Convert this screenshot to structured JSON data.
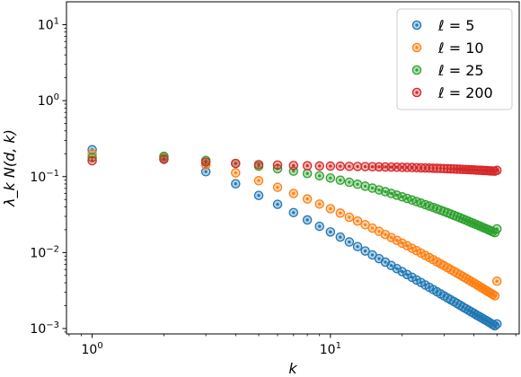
{
  "chart_data": {
    "type": "scatter",
    "xscale": "log",
    "yscale": "log",
    "xlabel": "k",
    "ylabel": "λ_k N(d, k)",
    "xlim": [
      0.78,
      62
    ],
    "ylim": [
      0.00085,
      20
    ],
    "x_ticks": [
      {
        "value": 1,
        "base": "10",
        "exp": "0"
      },
      {
        "value": 10,
        "base": "10",
        "exp": "1"
      }
    ],
    "y_ticks": [
      {
        "value": 0.001,
        "base": "10",
        "exp": "−3"
      },
      {
        "value": 0.01,
        "base": "10",
        "exp": "−2"
      },
      {
        "value": 0.1,
        "base": "10",
        "exp": "−1"
      },
      {
        "value": 1,
        "base": "10",
        "exp": "0"
      },
      {
        "value": 10,
        "base": "10",
        "exp": "1"
      }
    ],
    "legend_position": "top-right",
    "grid": false,
    "k_range": [
      1,
      50
    ],
    "series": [
      {
        "name": "ℓ = 5",
        "color": "#1f77b4",
        "values": [
          0.226,
          0.1725,
          0.116,
          0.0805,
          0.0565,
          0.0432,
          0.0336,
          0.0269,
          0.0222,
          0.0187,
          0.016,
          0.0138,
          0.012,
          0.0105,
          0.00933,
          0.00833,
          0.00749,
          0.00677,
          0.00615,
          0.00561,
          0.00514,
          0.00473,
          0.00436,
          0.00404,
          0.00375,
          0.00349,
          0.00326,
          0.00305,
          0.00286,
          0.00269,
          0.00253,
          0.00239,
          0.00226,
          0.00214,
          0.00203,
          0.00192,
          0.00183,
          0.00174,
          0.00166,
          0.00159,
          0.00151,
          0.00145,
          0.00139,
          0.00133,
          0.00128,
          0.00123,
          0.00118,
          0.00113,
          0.00109,
          0.00115
        ]
      },
      {
        "name": "ℓ = 10",
        "color": "#ff7f0e",
        "values": [
          0.2,
          0.182,
          0.143,
          0.112,
          0.0884,
          0.0723,
          0.06,
          0.0508,
          0.0435,
          0.0378,
          0.0331,
          0.0292,
          0.026,
          0.0233,
          0.021,
          0.019,
          0.0173,
          0.0158,
          0.0145,
          0.0133,
          0.0123,
          0.0114,
          0.0106,
          0.00985,
          0.00919,
          0.0086,
          0.00806,
          0.00757,
          0.00712,
          0.00671,
          0.00633,
          0.00598,
          0.00566,
          0.00537,
          0.00509,
          0.00483,
          0.0046,
          0.00438,
          0.00417,
          0.00398,
          0.0038,
          0.00363,
          0.00347,
          0.00332,
          0.00318,
          0.00305,
          0.00293,
          0.00281,
          0.0027,
          0.0042
        ]
      },
      {
        "name": "ℓ = 25",
        "color": "#2ca02c",
        "values": [
          0.178,
          0.185,
          0.163,
          0.149,
          0.137,
          0.127,
          0.118,
          0.11,
          0.1025,
          0.0958,
          0.0898,
          0.0843,
          0.0793,
          0.0748,
          0.0706,
          0.0668,
          0.0633,
          0.06,
          0.057,
          0.0542,
          0.0516,
          0.0492,
          0.0469,
          0.0448,
          0.0428,
          0.041,
          0.0393,
          0.0377,
          0.0362,
          0.0347,
          0.0334,
          0.0321,
          0.0309,
          0.0298,
          0.0287,
          0.0277,
          0.0267,
          0.0258,
          0.0249,
          0.0241,
          0.0233,
          0.0226,
          0.0219,
          0.0212,
          0.0206,
          0.02,
          0.0194,
          0.0188,
          0.0183,
          0.0205
        ]
      },
      {
        "name": "ℓ = 200",
        "color": "#d62728",
        "values": [
          0.162,
          0.169,
          0.155,
          0.149,
          0.144,
          0.142,
          0.14,
          0.139,
          0.138,
          0.1375,
          0.137,
          0.1365,
          0.136,
          0.1355,
          0.135,
          0.1345,
          0.134,
          0.1335,
          0.133,
          0.1325,
          0.132,
          0.1315,
          0.131,
          0.1305,
          0.13,
          0.1295,
          0.129,
          0.1285,
          0.128,
          0.1275,
          0.127,
          0.1265,
          0.126,
          0.1255,
          0.125,
          0.1245,
          0.124,
          0.1235,
          0.123,
          0.1225,
          0.122,
          0.1215,
          0.121,
          0.1205,
          0.12,
          0.1195,
          0.119,
          0.1185,
          0.118,
          0.121
        ]
      }
    ]
  }
}
